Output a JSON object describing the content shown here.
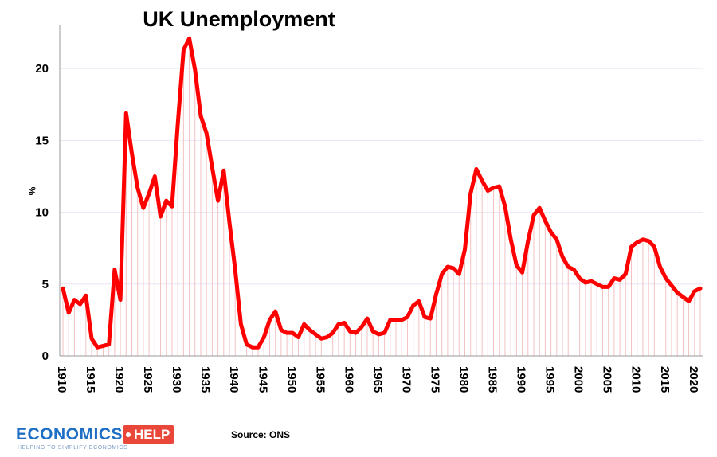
{
  "chart_data": {
    "type": "line",
    "title": "UK Unemployment",
    "ylabel": "%",
    "xlabel": "",
    "ylim": [
      0,
      23
    ],
    "xlim": [
      1910,
      2021
    ],
    "yticks": [
      0,
      5,
      10,
      15,
      20
    ],
    "xticks": [
      1910,
      1915,
      1920,
      1925,
      1930,
      1935,
      1940,
      1945,
      1950,
      1955,
      1960,
      1965,
      1970,
      1975,
      1980,
      1985,
      1990,
      1995,
      2000,
      2005,
      2010,
      2015,
      2020
    ],
    "grid": true,
    "line_color": "#ff0000",
    "series": [
      {
        "x": [
          1910,
          1911,
          1912,
          1913,
          1914,
          1915,
          1916,
          1917,
          1918,
          1919,
          1920,
          1921,
          1922,
          1923,
          1924,
          1925,
          1926,
          1927,
          1928,
          1929,
          1930,
          1931,
          1932,
          1933,
          1934,
          1935,
          1936,
          1937,
          1938,
          1939,
          1940,
          1941,
          1942,
          1943,
          1944,
          1945,
          1946,
          1947,
          1948,
          1949,
          1950,
          1951,
          1952,
          1953,
          1954,
          1955,
          1956,
          1957,
          1958,
          1959,
          1960,
          1961,
          1962,
          1963,
          1964,
          1965,
          1966,
          1967,
          1968,
          1969,
          1970,
          1971,
          1972,
          1973,
          1974,
          1975,
          1976,
          1977,
          1978,
          1979,
          1980,
          1981,
          1982,
          1983,
          1984,
          1985,
          1986,
          1987,
          1988,
          1989,
          1990,
          1991,
          1992,
          1993,
          1994,
          1995,
          1996,
          1997,
          1998,
          1999,
          2000,
          2001,
          2002,
          2003,
          2004,
          2005,
          2006,
          2007,
          2008,
          2009,
          2010,
          2011,
          2012,
          2013,
          2014,
          2015,
          2016,
          2017,
          2018,
          2019,
          2020,
          2021
        ],
        "values": [
          4.7,
          3.0,
          3.9,
          3.6,
          4.2,
          1.2,
          0.6,
          0.7,
          0.8,
          6.0,
          3.9,
          16.9,
          14.1,
          11.7,
          10.3,
          11.3,
          12.5,
          9.7,
          10.8,
          10.4,
          16.1,
          21.3,
          22.1,
          19.9,
          16.7,
          15.5,
          13.1,
          10.8,
          12.9,
          9.3,
          6.0,
          2.2,
          0.8,
          0.6,
          0.6,
          1.3,
          2.5,
          3.1,
          1.8,
          1.6,
          1.6,
          1.3,
          2.2,
          1.8,
          1.5,
          1.2,
          1.3,
          1.6,
          2.2,
          2.3,
          1.7,
          1.6,
          2.0,
          2.6,
          1.7,
          1.5,
          1.6,
          2.5,
          2.5,
          2.5,
          2.7,
          3.5,
          3.8,
          2.7,
          2.6,
          4.3,
          5.7,
          6.2,
          6.1,
          5.7,
          7.4,
          11.3,
          13.0,
          12.2,
          11.5,
          11.7,
          11.8,
          10.4,
          8.1,
          6.3,
          5.8,
          8.0,
          9.8,
          10.3,
          9.4,
          8.6,
          8.1,
          6.9,
          6.2,
          6.0,
          5.4,
          5.1,
          5.2,
          5.0,
          4.8,
          4.8,
          5.4,
          5.3,
          5.7,
          7.6,
          7.9,
          8.1,
          8.0,
          7.6,
          6.2,
          5.4,
          4.9,
          4.4,
          4.1,
          3.8,
          4.5,
          4.7
        ]
      }
    ]
  },
  "source_text": "Source: ONS",
  "logo": {
    "word": "ECONOMICS",
    "tag": "HELP",
    "tagline": "HELPING TO SIMPLIFY ECONOMICS"
  }
}
